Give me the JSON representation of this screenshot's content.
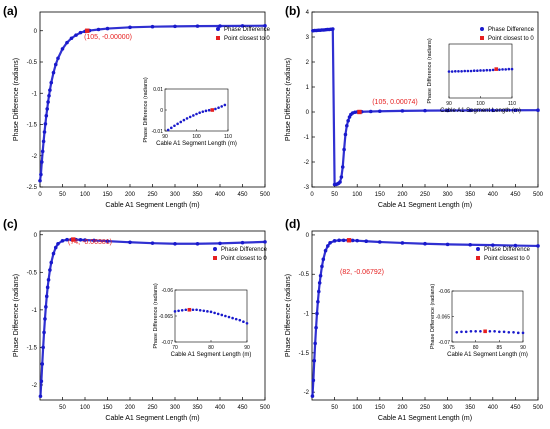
{
  "figure": {
    "panels": [
      "(a)",
      "(b)",
      "(c)",
      "(d)"
    ]
  },
  "colors": {
    "series": "#1a1acc",
    "marker": "#e62020",
    "annotation": "#e62020",
    "axis": "#000000"
  },
  "chart_data": [
    {
      "panel": "(a)",
      "type": "scatter",
      "xlabel": "Cable A1 Segment Length (m)",
      "ylabel": "Phase Difference (radians)",
      "xlim": [
        0,
        500
      ],
      "ylim": [
        -2.5,
        0.3
      ],
      "xticks": [
        "0",
        "50",
        "100",
        "150",
        "200",
        "250",
        "300",
        "350",
        "400",
        "450",
        "500"
      ],
      "yticks": [
        "-2.5",
        "-2",
        "-1.5",
        "-1",
        "-0.5",
        "0"
      ],
      "legend": {
        "position": "top-right",
        "entries": [
          "Phase Difference",
          "Point closest to 0"
        ]
      },
      "series": [
        {
          "name": "Phase Difference",
          "x": [
            0,
            2,
            4,
            6,
            8,
            10,
            12,
            14,
            16,
            18,
            20,
            22,
            25,
            30,
            35,
            40,
            50,
            60,
            70,
            80,
            90,
            100,
            110,
            130,
            150,
            200,
            250,
            300,
            350,
            400,
            450,
            500
          ],
          "y": [
            -2.4,
            -2.3,
            -2.1,
            -1.93,
            -1.77,
            -1.62,
            -1.49,
            -1.36,
            -1.25,
            -1.14,
            -1.04,
            -0.95,
            -0.83,
            -0.67,
            -0.54,
            -0.44,
            -0.29,
            -0.19,
            -0.12,
            -0.07,
            -0.03,
            -0.01,
            0.003,
            0.02,
            0.035,
            0.055,
            0.065,
            0.07,
            0.074,
            0.076,
            0.078,
            0.08
          ]
        },
        {
          "name": "Point closest to 0",
          "x": [
            105
          ],
          "y": [
            0
          ]
        }
      ],
      "annotation": "(105, -0.00000)",
      "inset": {
        "xlabel": "Cable A1 Segment Length (m)",
        "ylabel": "Phase Difference (radians)",
        "xlim": [
          90,
          110
        ],
        "ylim": [
          -0.01,
          0.01
        ],
        "xticks": [
          "90",
          "100",
          "110"
        ],
        "yticks": [
          "-0.01",
          "0",
          "0.01"
        ],
        "x": [
          91,
          92,
          93,
          94,
          95,
          96,
          97,
          98,
          99,
          100,
          101,
          102,
          103,
          104,
          105,
          106,
          107,
          108,
          109
        ],
        "y": [
          -0.0095,
          -0.0085,
          -0.0075,
          -0.0066,
          -0.0057,
          -0.0048,
          -0.004,
          -0.0033,
          -0.0026,
          -0.0019,
          -0.0013,
          -0.0008,
          -0.0004,
          -0.0001,
          0,
          0.0005,
          0.0011,
          0.0017,
          0.0024
        ],
        "marker": {
          "x": 105,
          "y": 0
        }
      }
    },
    {
      "panel": "(b)",
      "type": "scatter",
      "xlabel": "Cable A1 Segment Length (m)",
      "ylabel": "Phase Difference (radians)",
      "xlim": [
        0,
        500
      ],
      "ylim": [
        -3,
        4
      ],
      "xticks": [
        "0",
        "50",
        "100",
        "150",
        "200",
        "250",
        "300",
        "350",
        "400",
        "450",
        "500"
      ],
      "yticks": [
        "-3",
        "-2",
        "-1",
        "0",
        "1",
        "2",
        "3",
        "4"
      ],
      "legend": {
        "position": "top-right",
        "entries": [
          "Phase Difference",
          "Point closest to 0"
        ]
      },
      "series": [
        {
          "name": "Phase Difference",
          "x": [
            2,
            6,
            10,
            14,
            18,
            22,
            26,
            30,
            34,
            38,
            42,
            46,
            50,
            53,
            56,
            59,
            62,
            65,
            68,
            71,
            74,
            77,
            80,
            83,
            86,
            90,
            95,
            100,
            110,
            130,
            150,
            200,
            250,
            300,
            350,
            400,
            450,
            500
          ],
          "y": [
            3.25,
            3.26,
            3.26,
            3.27,
            3.27,
            3.28,
            3.28,
            3.29,
            3.3,
            3.3,
            3.31,
            3.32,
            -2.9,
            -2.9,
            -2.88,
            -2.85,
            -2.8,
            -2.6,
            -2.2,
            -1.5,
            -0.9,
            -0.55,
            -0.35,
            -0.2,
            -0.1,
            -0.04,
            -0.01,
            0.0,
            0.01,
            0.02,
            0.03,
            0.045,
            0.055,
            0.06,
            0.065,
            0.068,
            0.07,
            0.072
          ]
        },
        {
          "name": "Point closest to 0",
          "x": [
            105
          ],
          "y": [
            0.00074
          ]
        }
      ],
      "annotation": "(105, 0.00074)",
      "inset": {
        "xlabel": "Cable A1 Segment Length (m)",
        "ylabel": "Phase Difference (radians)",
        "xlim": [
          90,
          110
        ],
        "ylim": [
          -0.01,
          0.01
        ],
        "xticks": [
          "90",
          "100",
          "110"
        ],
        "yticks": [],
        "x": [
          90,
          91,
          92,
          93,
          94,
          95,
          96,
          97,
          98,
          99,
          100,
          101,
          102,
          103,
          104,
          105,
          106,
          107,
          108,
          109,
          110
        ],
        "y": [
          -0.0002,
          -0.0002,
          -0.0001,
          -0.0001,
          -0.0001,
          0,
          0,
          0,
          0.0001,
          0.0001,
          0.0002,
          0.0002,
          0.0003,
          0.0003,
          0.0004,
          0.0007,
          0.0005,
          0.0006,
          0.0006,
          0.0007,
          0.0007
        ],
        "marker": {
          "x": 105,
          "y": 0.0007
        }
      }
    },
    {
      "panel": "(c)",
      "type": "scatter",
      "xlabel": "Cable A1 Segment Length (m)",
      "ylabel": "Phase Difference (radians)",
      "xlim": [
        0,
        500
      ],
      "ylim": [
        -2.2,
        0.05
      ],
      "xticks": [
        "50",
        "100",
        "150",
        "200",
        "250",
        "300",
        "350",
        "400",
        "450",
        "500"
      ],
      "yticks": [
        "-2",
        "-1.5",
        "-1",
        "-0.5",
        "0"
      ],
      "legend": {
        "position": "top-right",
        "entries": [
          "Phase Difference",
          "Point closest to 0"
        ]
      },
      "series": [
        {
          "name": "Phase Difference",
          "x": [
            1,
            3,
            5,
            7,
            9,
            11,
            13,
            15,
            17,
            19,
            22,
            25,
            30,
            35,
            40,
            50,
            60,
            70,
            80,
            90,
            100,
            120,
            150,
            200,
            250,
            300,
            350,
            400,
            450,
            500
          ],
          "y": [
            -2.15,
            -1.95,
            -1.72,
            -1.5,
            -1.3,
            -1.12,
            -0.96,
            -0.82,
            -0.7,
            -0.6,
            -0.47,
            -0.37,
            -0.25,
            -0.17,
            -0.12,
            -0.08,
            -0.066,
            -0.064,
            -0.065,
            -0.067,
            -0.07,
            -0.076,
            -0.085,
            -0.1,
            -0.112,
            -0.12,
            -0.12,
            -0.115,
            -0.105,
            -0.095
          ]
        },
        {
          "name": "Point closest to 0",
          "x": [
            74
          ],
          "y": [
            -0.06381
          ]
        }
      ],
      "annotation": "(74, -0.06381)",
      "inset": {
        "xlabel": "Cable A1 Segment Length (m)",
        "ylabel": "Phase Difference (radians)",
        "xlim": [
          70,
          90
        ],
        "ylim": [
          -0.07,
          -0.06
        ],
        "xticks": [
          "70",
          "80",
          "90"
        ],
        "yticks": [
          "-0.06",
          "-0.065",
          "-0.07"
        ],
        "x": [
          70,
          71,
          72,
          73,
          74,
          75,
          76,
          77,
          78,
          79,
          80,
          81,
          82,
          83,
          84,
          85,
          86,
          87,
          88,
          89,
          90
        ],
        "y": [
          -0.0641,
          -0.064,
          -0.0639,
          -0.0638,
          -0.0638,
          -0.0638,
          -0.0638,
          -0.0639,
          -0.064,
          -0.0641,
          -0.0642,
          -0.0644,
          -0.0646,
          -0.0648,
          -0.065,
          -0.0652,
          -0.0654,
          -0.0656,
          -0.0658,
          -0.0661,
          -0.0664
        ],
        "marker": {
          "x": 74,
          "y": -0.0638
        }
      }
    },
    {
      "panel": "(d)",
      "type": "scatter",
      "xlabel": "Cable A1 Segment Length (m)",
      "ylabel": "Phase Difference (radians)",
      "xlim": [
        0,
        500
      ],
      "ylim": [
        -2.1,
        0.05
      ],
      "xticks": [
        "50",
        "100",
        "150",
        "200",
        "250",
        "300",
        "350",
        "400",
        "450",
        "500"
      ],
      "yticks": [
        "-2",
        "-1.5",
        "-1",
        "-0.5",
        "0"
      ],
      "legend": {
        "position": "top-right",
        "entries": [
          "Phase Difference",
          "Point closest to 0"
        ]
      },
      "series": [
        {
          "name": "Phase Difference",
          "x": [
            1,
            3,
            5,
            7,
            9,
            11,
            13,
            15,
            17,
            19,
            22,
            25,
            30,
            35,
            40,
            50,
            60,
            70,
            80,
            90,
            100,
            120,
            150,
            200,
            250,
            300,
            350,
            400,
            450,
            500
          ],
          "y": [
            -2.05,
            -1.85,
            -1.6,
            -1.38,
            -1.18,
            -1.0,
            -0.85,
            -0.72,
            -0.61,
            -0.52,
            -0.4,
            -0.31,
            -0.2,
            -0.14,
            -0.1,
            -0.075,
            -0.069,
            -0.068,
            -0.068,
            -0.07,
            -0.073,
            -0.08,
            -0.09,
            -0.102,
            -0.112,
            -0.12,
            -0.125,
            -0.13,
            -0.135,
            -0.14
          ]
        },
        {
          "name": "Point closest to 0",
          "x": [
            82
          ],
          "y": [
            -0.06792
          ]
        }
      ],
      "annotation": "(82, -0.06792)",
      "inset": {
        "xlabel": "Cable A1 Segment Length (m)",
        "ylabel": "Phase Difference (radians)",
        "xlim": [
          75,
          90
        ],
        "ylim": [
          -0.07,
          -0.06
        ],
        "xticks": [
          "75",
          "80",
          "85",
          "90"
        ],
        "yticks": [
          "-0.06",
          "-0.065",
          "-0.07"
        ],
        "x": [
          76,
          77,
          78,
          79,
          80,
          81,
          82,
          83,
          84,
          85,
          86,
          87,
          88,
          89,
          90
        ],
        "y": [
          -0.0681,
          -0.068,
          -0.068,
          -0.0679,
          -0.0679,
          -0.0679,
          -0.0679,
          -0.0679,
          -0.0679,
          -0.068,
          -0.068,
          -0.0681,
          -0.0681,
          -0.0682,
          -0.0682
        ],
        "marker": {
          "x": 82,
          "y": -0.0679
        }
      }
    }
  ]
}
